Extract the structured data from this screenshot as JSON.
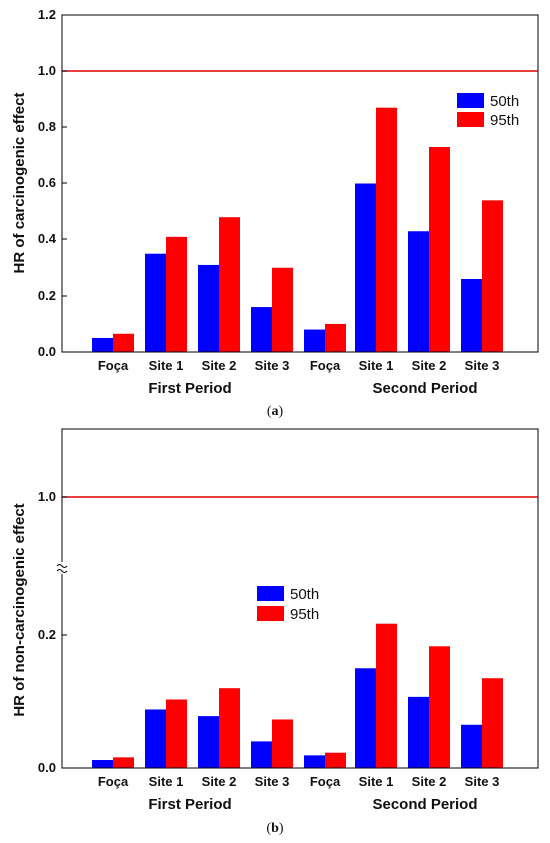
{
  "colors": {
    "p50": "#0000ff",
    "p95": "#ff0000",
    "ref_line": "#e00000",
    "axis": "#000000"
  },
  "chart_data": [
    {
      "type": "bar",
      "caption": "a",
      "ylabel": "HR of carcinogenic effect",
      "ylim": [
        0,
        1.2
      ],
      "yticks": [
        "0.0",
        "0.2",
        "0.4",
        "0.6",
        "0.8",
        "1.0",
        "1.2"
      ],
      "ref_line": 1.0,
      "categories": [
        "Foça",
        "Site 1",
        "Site 2",
        "Site 3",
        "Foça",
        "Site 1",
        "Site 2",
        "Site 3"
      ],
      "groups": [
        "First Period",
        "Second Period"
      ],
      "legend_position": "right",
      "series": [
        {
          "name": "50th",
          "values": [
            0.05,
            0.35,
            0.31,
            0.16,
            0.08,
            0.6,
            0.43,
            0.26
          ]
        },
        {
          "name": "95th",
          "values": [
            0.065,
            0.41,
            0.48,
            0.3,
            0.1,
            0.87,
            0.73,
            0.54
          ]
        }
      ]
    },
    {
      "type": "bar",
      "caption": "b",
      "ylabel": "HR of non-carcinogenic effect",
      "ylim": [
        0,
        1.2
      ],
      "yticks": [
        "0.0",
        "0.2",
        "1.0"
      ],
      "axis_break": true,
      "ref_line": 1.0,
      "categories": [
        "Foça",
        "Site 1",
        "Site 2",
        "Site 3",
        "Foça",
        "Site 1",
        "Site 2",
        "Site 3"
      ],
      "groups": [
        "First Period",
        "Second Period"
      ],
      "legend_position": "top-center",
      "series": [
        {
          "name": "50th",
          "values": [
            0.012,
            0.088,
            0.078,
            0.04,
            0.019,
            0.15,
            0.107,
            0.065
          ]
        },
        {
          "name": "95th",
          "values": [
            0.016,
            0.103,
            0.12,
            0.073,
            0.023,
            0.217,
            0.183,
            0.135
          ]
        }
      ]
    }
  ]
}
